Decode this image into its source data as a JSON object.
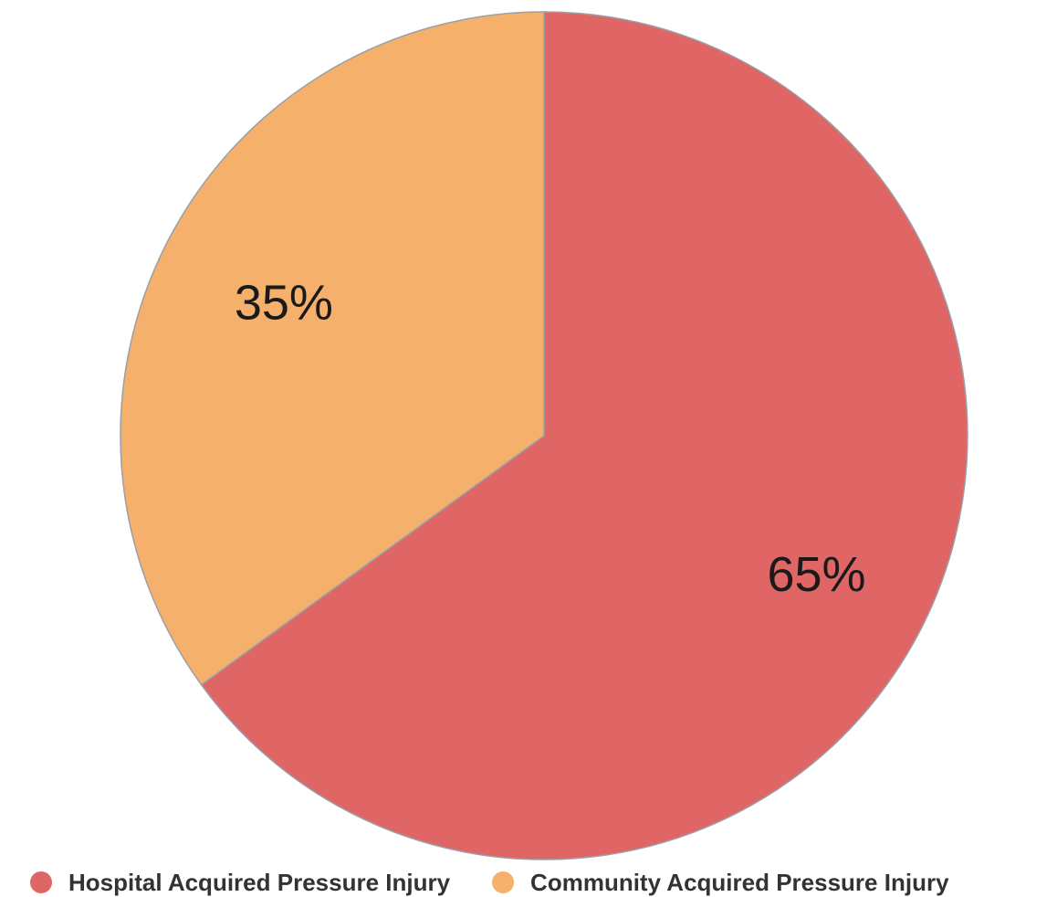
{
  "chart_data": {
    "type": "pie",
    "title": "",
    "categories": [
      "Hospital Acquired Pressure Injury",
      "Community Acquired Pressure Injury"
    ],
    "values": [
      65,
      35
    ],
    "labels": [
      "65%",
      "35%"
    ],
    "colors": [
      "#e06666",
      "#f5b06b"
    ],
    "start_angle_deg": 0,
    "direction": "clockwise",
    "legend_position": "bottom"
  }
}
